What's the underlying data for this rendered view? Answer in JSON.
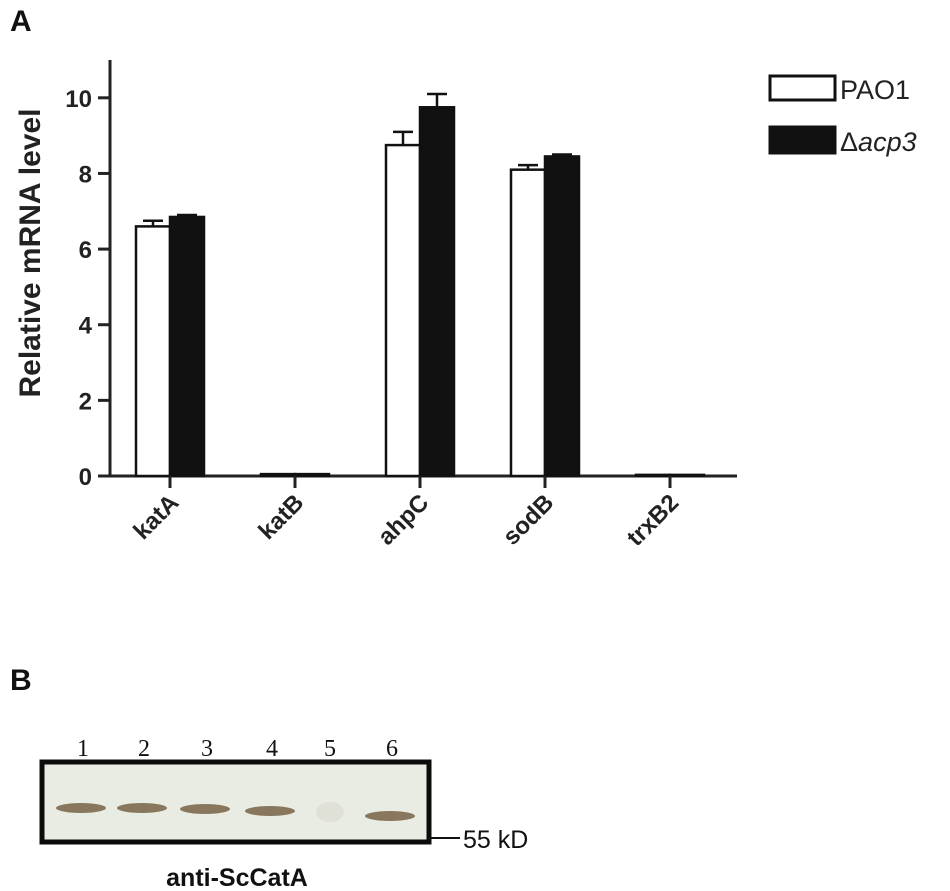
{
  "panel_a": {
    "label": "A"
  },
  "panel_b": {
    "label": "B"
  },
  "chart_data": {
    "type": "bar",
    "title": "",
    "xlabel": "",
    "ylabel": "Relative mRNA level",
    "ylim": [
      0,
      11
    ],
    "yticks": [
      "0",
      "2",
      "4",
      "6",
      "8",
      "10"
    ],
    "categories": [
      "katA",
      "katB",
      "ahpC",
      "sodB",
      "trxB2"
    ],
    "series": [
      {
        "name": "PAO1",
        "values": [
          6.6,
          0.05,
          8.75,
          8.1,
          0.03
        ],
        "errors": [
          0.15,
          0.0,
          0.35,
          0.12,
          0.0
        ],
        "fill": "#ffffff"
      },
      {
        "name": "acp3",
        "prefix": "Δ",
        "values": [
          6.85,
          0.05,
          9.75,
          8.45,
          0.03
        ],
        "errors": [
          0.05,
          0.0,
          0.35,
          0.05,
          0.0
        ],
        "fill": "#111111"
      }
    ],
    "legend_position": "top-right",
    "grid": false
  },
  "blot": {
    "lanes": [
      "1",
      "2",
      "3",
      "4",
      "5",
      "6"
    ],
    "band_present": [
      true,
      true,
      true,
      true,
      false,
      true
    ],
    "marker": "55 kD",
    "antibody": "anti-ScCatA",
    "membrane_color": "#e9ece2",
    "band_color": "#7d6a4f"
  }
}
